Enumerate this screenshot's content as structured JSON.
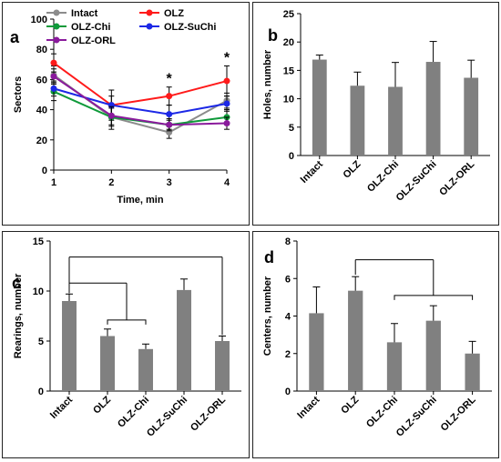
{
  "chart_data": [
    {
      "id": "a",
      "type": "line",
      "panel_label": "a",
      "ylabel": "Sectors",
      "xlabel": "Time, min",
      "x": [
        1,
        2,
        3,
        4
      ],
      "ylim": [
        0,
        100
      ],
      "yticks": [
        0,
        20,
        40,
        60,
        80,
        100
      ],
      "xticks": [
        1,
        2,
        3,
        4
      ],
      "legend_position": "top",
      "series": [
        {
          "name": "Intact",
          "color": "#8c8c8c",
          "values": [
            63,
            35,
            25,
            46
          ],
          "errors": [
            6,
            8,
            4,
            5
          ]
        },
        {
          "name": "OLZ",
          "color": "#ff1a1a",
          "values": [
            71,
            43,
            49,
            59
          ],
          "errors": [
            6,
            10,
            6,
            10
          ]
        },
        {
          "name": "OLZ-Chi",
          "color": "#0f9a3a",
          "values": [
            52,
            35,
            30,
            35
          ],
          "errors": [
            6,
            6,
            4,
            5
          ]
        },
        {
          "name": "OLZ-SuChi",
          "color": "#1c28e6",
          "values": [
            54,
            43,
            37,
            44
          ],
          "errors": [
            5,
            6,
            6,
            5
          ]
        },
        {
          "name": "OLZ-ORL",
          "color": "#8a1a9c",
          "values": [
            62,
            36,
            30,
            31
          ],
          "errors": [
            5,
            6,
            3,
            4
          ]
        }
      ],
      "annotations": [
        {
          "x": 3,
          "text": "*"
        },
        {
          "x": 4,
          "text": "*"
        }
      ]
    },
    {
      "id": "b",
      "type": "bar",
      "panel_label": "b",
      "ylabel": "Holes, number",
      "categories": [
        "Intact",
        "OLZ",
        "OLZ-Chi",
        "OLZ-SuChi",
        "OLZ-ORL"
      ],
      "values": [
        16.9,
        12.3,
        12.1,
        16.5,
        13.7
      ],
      "errors": [
        0.8,
        2.4,
        4.3,
        3.6,
        3.1
      ],
      "ylim": [
        0,
        25
      ],
      "yticks": [
        0,
        5,
        10,
        15,
        20,
        25
      ],
      "color": "#808080"
    },
    {
      "id": "c",
      "type": "bar",
      "panel_label": "c",
      "ylabel": "Rearings, number",
      "categories": [
        "Intact",
        "OLZ",
        "OLZ-Chi",
        "OLZ-SuChi",
        "OLZ-ORL"
      ],
      "values": [
        9.0,
        5.5,
        4.2,
        10.1,
        5.0
      ],
      "errors": [
        0.7,
        0.7,
        0.5,
        1.1,
        0.5
      ],
      "ylim": [
        0,
        15
      ],
      "yticks": [
        0,
        5,
        10,
        15
      ],
      "color": "#808080"
    },
    {
      "id": "d",
      "type": "bar",
      "panel_label": "d",
      "ylabel": "Centers, number",
      "categories": [
        "Intact",
        "OLZ",
        "OLZ-Chi",
        "OLZ-SuChi",
        "OLZ-ORL"
      ],
      "values": [
        4.15,
        5.35,
        2.6,
        3.75,
        2.0
      ],
      "errors": [
        1.4,
        0.75,
        1.0,
        0.8,
        0.65
      ],
      "ylim": [
        0,
        8
      ],
      "yticks": [
        0,
        2,
        4,
        6,
        8
      ],
      "color": "#808080"
    }
  ]
}
